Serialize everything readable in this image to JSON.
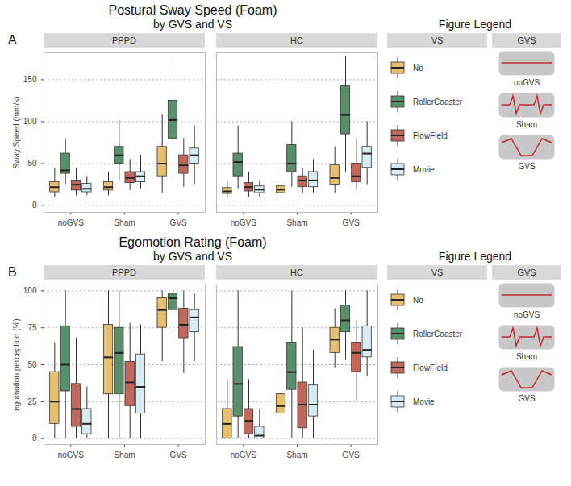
{
  "chart_data": [
    {
      "type": "box",
      "title": "Postural Sway Speed (Foam)",
      "subtitle": "by GVS and VS",
      "panel": "A",
      "y_label": "Sway Speed (mm/s)",
      "facets": [
        "PPPD",
        "HC"
      ],
      "categories": [
        "noGVS",
        "Sham",
        "GVS"
      ],
      "ylim": [
        -8,
        182
      ],
      "yticks": [
        0,
        50,
        100,
        150
      ],
      "grid": true,
      "legend": "right",
      "legend_title": "Figure Legend",
      "legend_heads": [
        "VS",
        "GVS"
      ],
      "gvs_legend": [
        "noGVS",
        "Sham",
        "GVS"
      ],
      "series": [
        {
          "name": "No",
          "color": "#e6c06e",
          "boxes": {
            "PPPD": [
              {
                "min": 10,
                "q1": 16,
                "median": 22,
                "q3": 28,
                "max": 45
              },
              {
                "min": 12,
                "q1": 18,
                "median": 22,
                "q3": 28,
                "max": 40
              },
              {
                "min": 15,
                "q1": 35,
                "median": 50,
                "q3": 70,
                "max": 108
              }
            ],
            "HC": [
              {
                "min": 10,
                "q1": 14,
                "median": 17,
                "q3": 21,
                "max": 28
              },
              {
                "min": 12,
                "q1": 15,
                "median": 19,
                "q3": 23,
                "max": 32
              },
              {
                "min": 15,
                "q1": 25,
                "median": 33,
                "q3": 48,
                "max": 70
              }
            ]
          }
        },
        {
          "name": "RollerCoaster",
          "color": "#5b8f6b",
          "boxes": {
            "PPPD": [
              {
                "min": 25,
                "q1": 38,
                "median": 42,
                "q3": 62,
                "max": 80
              },
              {
                "min": 30,
                "q1": 50,
                "median": 60,
                "q3": 70,
                "max": 102
              },
              {
                "min": 35,
                "q1": 80,
                "median": 102,
                "q3": 125,
                "max": 168
              }
            ],
            "HC": [
              {
                "min": 20,
                "q1": 35,
                "median": 52,
                "q3": 62,
                "max": 95
              },
              {
                "min": 22,
                "q1": 40,
                "median": 50,
                "q3": 72,
                "max": 100
              },
              {
                "min": 40,
                "q1": 85,
                "median": 108,
                "q3": 142,
                "max": 178
              }
            ]
          }
        },
        {
          "name": "FlowField",
          "color": "#c2675b",
          "boxes": {
            "PPPD": [
              {
                "min": 12,
                "q1": 18,
                "median": 25,
                "q3": 30,
                "max": 45
              },
              {
                "min": 18,
                "q1": 27,
                "median": 33,
                "q3": 40,
                "max": 55
              },
              {
                "min": 22,
                "q1": 38,
                "median": 48,
                "q3": 60,
                "max": 80
              }
            ],
            "HC": [
              {
                "min": 10,
                "q1": 17,
                "median": 22,
                "q3": 27,
                "max": 40
              },
              {
                "min": 15,
                "q1": 22,
                "median": 30,
                "q3": 35,
                "max": 45
              },
              {
                "min": 18,
                "q1": 28,
                "median": 35,
                "q3": 50,
                "max": 80
              }
            ]
          }
        },
        {
          "name": "Movie",
          "color": "#d6ecf0",
          "boxes": {
            "PPPD": [
              {
                "min": 12,
                "q1": 16,
                "median": 20,
                "q3": 26,
                "max": 35
              },
              {
                "min": 20,
                "q1": 28,
                "median": 35,
                "q3": 40,
                "max": 60
              },
              {
                "min": 25,
                "q1": 50,
                "median": 60,
                "q3": 68,
                "max": 95
              }
            ],
            "HC": [
              {
                "min": 10,
                "q1": 15,
                "median": 19,
                "q3": 23,
                "max": 30
              },
              {
                "min": 15,
                "q1": 22,
                "median": 30,
                "q3": 40,
                "max": 55
              },
              {
                "min": 25,
                "q1": 45,
                "median": 62,
                "q3": 70,
                "max": 100
              }
            ]
          }
        }
      ]
    },
    {
      "type": "box",
      "title": "Egomotion Rating (Foam)",
      "subtitle": "by GVS and VS",
      "panel": "B",
      "y_label": "egomotion perception (%)",
      "facets": [
        "PPPD",
        "HC"
      ],
      "categories": [
        "noGVS",
        "Sham",
        "GVS"
      ],
      "ylim": [
        -4,
        104
      ],
      "yticks": [
        0,
        25,
        50,
        75,
        100
      ],
      "grid": true,
      "legend": "right",
      "legend_title": "Figure Legend",
      "legend_heads": [
        "VS",
        "GVS"
      ],
      "gvs_legend": [
        "noGVS",
        "Sham",
        "GVS"
      ],
      "series": [
        {
          "name": "No",
          "color": "#e6c06e",
          "boxes": {
            "PPPD": [
              {
                "min": 0,
                "q1": 10,
                "median": 25,
                "q3": 45,
                "max": 65
              },
              {
                "min": 0,
                "q1": 30,
                "median": 55,
                "q3": 77,
                "max": 100
              },
              {
                "min": 52,
                "q1": 75,
                "median": 87,
                "q3": 95,
                "max": 100
              }
            ],
            "HC": [
              {
                "min": 0,
                "q1": 0,
                "median": 10,
                "q3": 20,
                "max": 40
              },
              {
                "min": 10,
                "q1": 17,
                "median": 22,
                "q3": 30,
                "max": 45
              },
              {
                "min": 48,
                "q1": 58,
                "median": 67,
                "q3": 75,
                "max": 88
              }
            ]
          }
        },
        {
          "name": "RollerCoaster",
          "color": "#5b8f6b",
          "boxes": {
            "PPPD": [
              {
                "min": 0,
                "q1": 32,
                "median": 50,
                "q3": 76,
                "max": 100
              },
              {
                "min": 0,
                "q1": 30,
                "median": 58,
                "q3": 75,
                "max": 100
              },
              {
                "min": 72,
                "q1": 87,
                "median": 95,
                "q3": 98,
                "max": 100
              }
            ],
            "HC": [
              {
                "min": 0,
                "q1": 15,
                "median": 37,
                "q3": 62,
                "max": 100
              },
              {
                "min": 0,
                "q1": 33,
                "median": 45,
                "q3": 65,
                "max": 100
              },
              {
                "min": 53,
                "q1": 72,
                "median": 80,
                "q3": 90,
                "max": 100
              }
            ]
          }
        },
        {
          "name": "FlowField",
          "color": "#c2675b",
          "boxes": {
            "PPPD": [
              {
                "min": 0,
                "q1": 8,
                "median": 20,
                "q3": 37,
                "max": 68
              },
              {
                "min": 0,
                "q1": 22,
                "median": 38,
                "q3": 52,
                "max": 78
              },
              {
                "min": 44,
                "q1": 68,
                "median": 77,
                "q3": 88,
                "max": 100
              }
            ],
            "HC": [
              {
                "min": 0,
                "q1": 3,
                "median": 12,
                "q3": 20,
                "max": 40
              },
              {
                "min": 0,
                "q1": 7,
                "median": 23,
                "q3": 38,
                "max": 75
              },
              {
                "min": 25,
                "q1": 45,
                "median": 58,
                "q3": 65,
                "max": 80
              }
            ]
          }
        },
        {
          "name": "Movie",
          "color": "#d6ecf0",
          "boxes": {
            "PPPD": [
              {
                "min": 0,
                "q1": 3,
                "median": 10,
                "q3": 20,
                "max": 35
              },
              {
                "min": 0,
                "q1": 17,
                "median": 35,
                "q3": 57,
                "max": 77
              },
              {
                "min": 52,
                "q1": 72,
                "median": 82,
                "q3": 87,
                "max": 98
              }
            ],
            "HC": [
              {
                "min": 0,
                "q1": 0,
                "median": 2,
                "q3": 8,
                "max": 20
              },
              {
                "min": 0,
                "q1": 15,
                "median": 23,
                "q3": 36,
                "max": 60
              },
              {
                "min": 42,
                "q1": 55,
                "median": 60,
                "q3": 76,
                "max": 100
              }
            ]
          }
        }
      ]
    }
  ]
}
